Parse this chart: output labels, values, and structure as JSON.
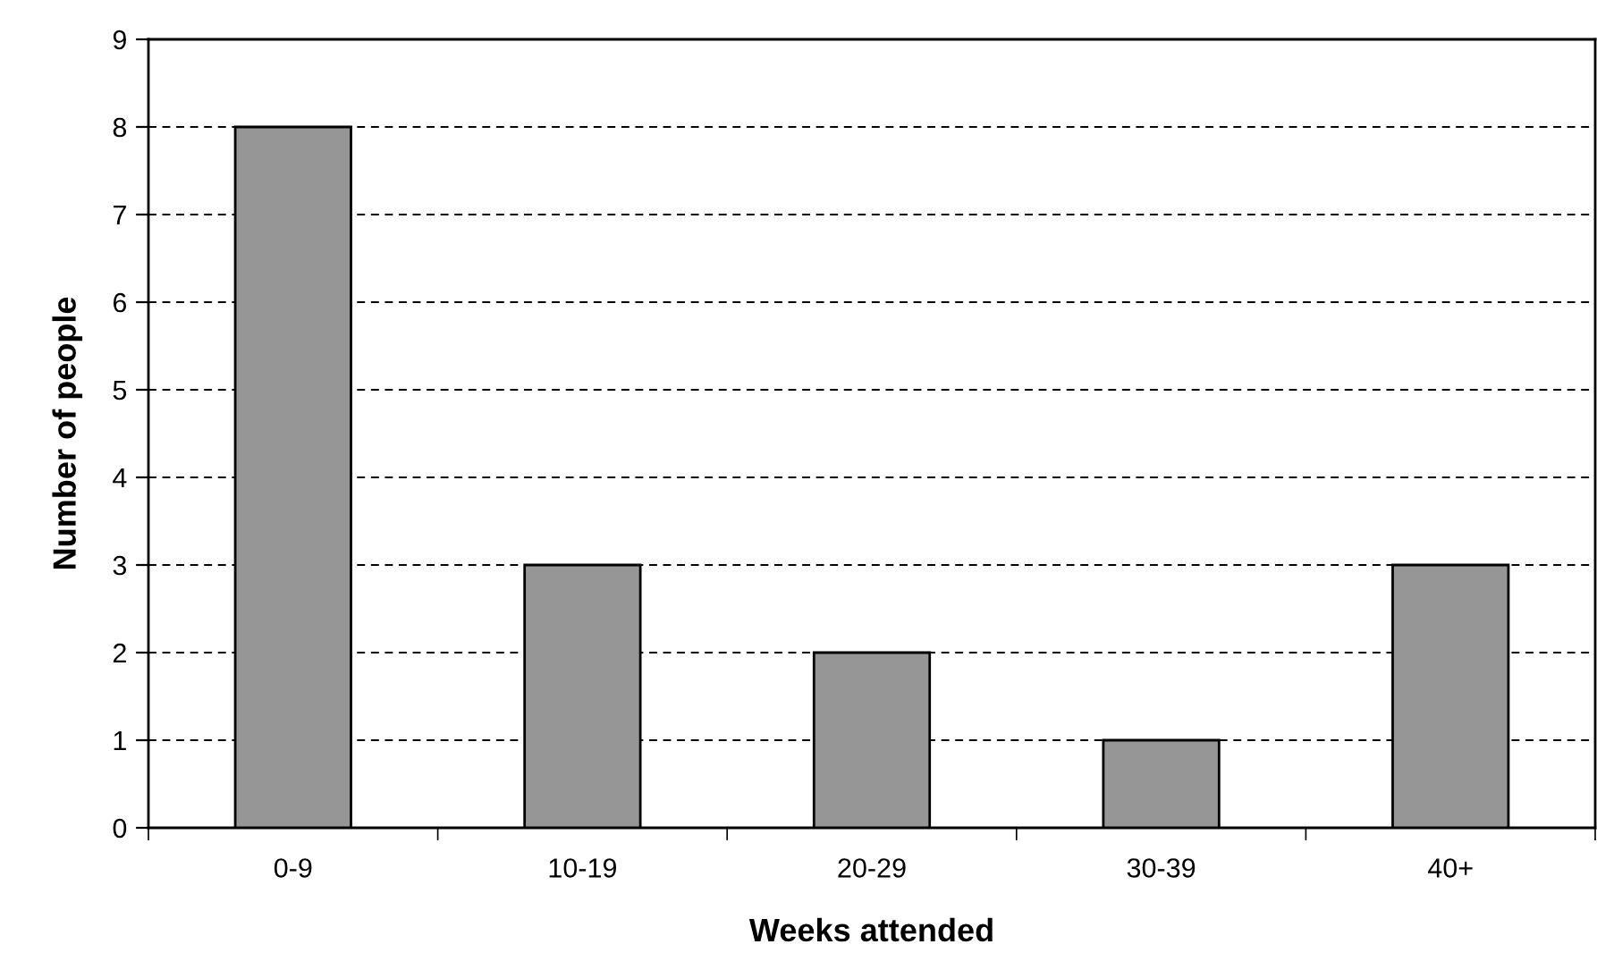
{
  "chart_data": {
    "type": "bar",
    "xlabel": "Weeks attended",
    "ylabel": "Number of people",
    "categories": [
      "0-9",
      "10-19",
      "20-29",
      "30-39",
      "40+"
    ],
    "values": [
      8,
      3,
      2,
      1,
      3
    ],
    "color": "#969696",
    "ylim": [
      0,
      9
    ],
    "yticks": [
      0,
      1,
      2,
      3,
      4,
      5,
      6,
      7,
      8,
      9
    ],
    "grid": "y",
    "legend": false
  }
}
